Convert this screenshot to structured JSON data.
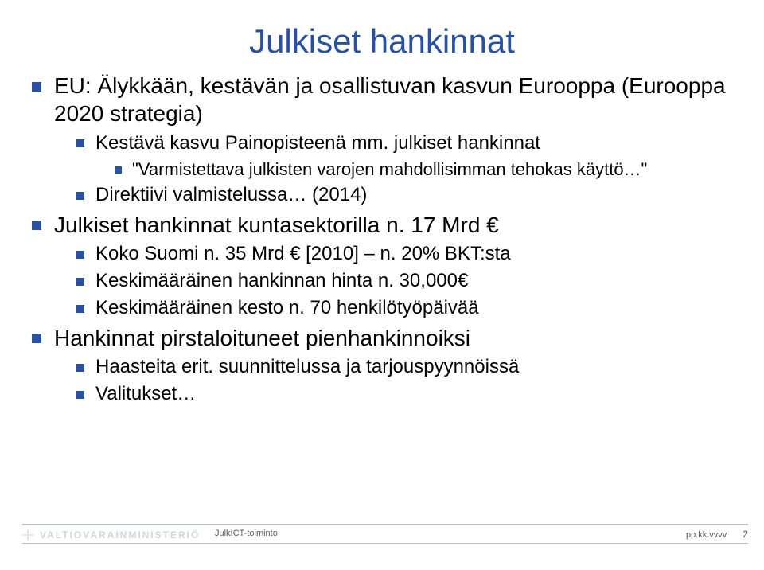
{
  "title": "Julkiset hankinnat",
  "colors": {
    "accent": "#2951a3",
    "footer_line": "#b9c3c9",
    "footer_logo_text": "#cfd6db",
    "footer_text": "#5a5a5a",
    "background": "#ffffff",
    "body_text": "#000000"
  },
  "bullets": {
    "b1": "EU: Älykkään, kestävän ja osallistuvan kasvun Eurooppa (Eurooppa 2020 strategia)",
    "b1_1": "Kestävä kasvu Painopisteenä mm. julkiset hankinnat",
    "b1_1_1": "\"Varmistettava julkisten varojen mahdollisimman tehokas käyttö…\"",
    "b1_2": "Direktiivi valmistelussa… (2014)",
    "b2": "Julkiset hankinnat kuntasektorilla n. 17 Mrd €",
    "b2_1": "Koko Suomi n. 35 Mrd € [2010] – n. 20% BKT:sta",
    "b2_2": "Keskimääräinen hankinnan hinta n. 30,000€",
    "b2_3": "Keskimääräinen kesto n. 70 henkilötyöpäivää",
    "b3": "Hankinnat pirstaloituneet pienhankinnoiksi",
    "b3_1": "Haasteita erit. suunnittelussa ja tarjouspyynnöissä",
    "b3_2": "Valitukset…"
  },
  "footer": {
    "logo_text": "VALTIOVARAINMINISTERIÖ",
    "center": "JulkICT-toiminto",
    "date": "pp.kk.vvvv",
    "page": "2"
  },
  "font_sizes": {
    "title": 42,
    "lvl1": 28,
    "lvl2": 24,
    "lvl3": 22,
    "lvl4": 20,
    "footer": 11
  }
}
